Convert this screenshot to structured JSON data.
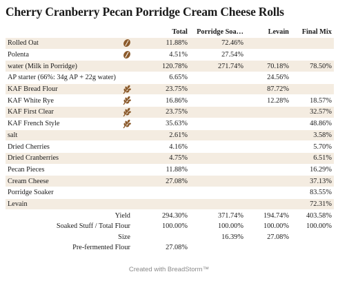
{
  "title": "Cherry Cranberry Pecan Porridge Cream Cheese Rolls",
  "columns": [
    "Total",
    "Porridge Soa…",
    "Levain",
    "Final Mix"
  ],
  "ingredients": [
    {
      "name": "Rolled Oat",
      "icon": "oat-icon",
      "total": "11.88%",
      "porridge": "72.46%",
      "levain": "",
      "final": ""
    },
    {
      "name": "Polenta",
      "icon": "grain-icon",
      "total": "4.51%",
      "porridge": "27.54%",
      "levain": "",
      "final": ""
    },
    {
      "name": "water (Milk in Porridge)",
      "icon": "",
      "total": "120.78%",
      "porridge": "271.74%",
      "levain": "70.18%",
      "final": "78.50%"
    },
    {
      "name": "AP starter (66%: 34g AP + 22g water)",
      "icon": "",
      "total": "6.65%",
      "porridge": "",
      "levain": "24.56%",
      "final": ""
    },
    {
      "name": "KAF Bread Flour",
      "icon": "wheat-icon",
      "total": "23.75%",
      "porridge": "",
      "levain": "87.72%",
      "final": ""
    },
    {
      "name": "KAF White Rye",
      "icon": "wheat-icon",
      "total": "16.86%",
      "porridge": "",
      "levain": "12.28%",
      "final": "18.57%"
    },
    {
      "name": "KAF First Clear",
      "icon": "wheat-icon",
      "total": "23.75%",
      "porridge": "",
      "levain": "",
      "final": "32.57%"
    },
    {
      "name": "KAF French Style",
      "icon": "wheat-icon",
      "total": "35.63%",
      "porridge": "",
      "levain": "",
      "final": "48.86%"
    },
    {
      "name": "salt",
      "icon": "",
      "total": "2.61%",
      "porridge": "",
      "levain": "",
      "final": "3.58%"
    },
    {
      "name": "Dried Cherries",
      "icon": "",
      "total": "4.16%",
      "porridge": "",
      "levain": "",
      "final": "5.70%"
    },
    {
      "name": "Dried Cranberries",
      "icon": "",
      "total": "4.75%",
      "porridge": "",
      "levain": "",
      "final": "6.51%"
    },
    {
      "name": "Pecan Pieces",
      "icon": "",
      "total": "11.88%",
      "porridge": "",
      "levain": "",
      "final": "16.29%"
    },
    {
      "name": "Cream Cheese",
      "icon": "",
      "total": "27.08%",
      "porridge": "",
      "levain": "",
      "final": "37.13%"
    },
    {
      "name": "Porridge Soaker",
      "icon": "",
      "total": "",
      "porridge": "",
      "levain": "",
      "final": "83.55%"
    },
    {
      "name": "Levain",
      "icon": "",
      "total": "",
      "porridge": "",
      "levain": "",
      "final": "72.31%"
    }
  ],
  "summary": [
    {
      "label": "Yield",
      "total": "294.30%",
      "porridge": "371.74%",
      "levain": "194.74%",
      "final": "403.58%"
    },
    {
      "label": "Soaked Stuff / Total Flour",
      "total": "100.00%",
      "porridge": "100.00%",
      "levain": "100.00%",
      "final": "100.00%"
    },
    {
      "label": "Size",
      "total": "",
      "porridge": "16.39%",
      "levain": "27.08%",
      "final": ""
    },
    {
      "label": "Pre-fermented Flour",
      "total": "27.08%",
      "porridge": "",
      "levain": "",
      "final": ""
    }
  ],
  "footer": "Created with BreadStorm™",
  "colors": {
    "row_stripe": "#f4ece1",
    "icon_brown": "#8b5a2b",
    "text": "#1a1a1a",
    "footer": "#8a8a8a"
  }
}
